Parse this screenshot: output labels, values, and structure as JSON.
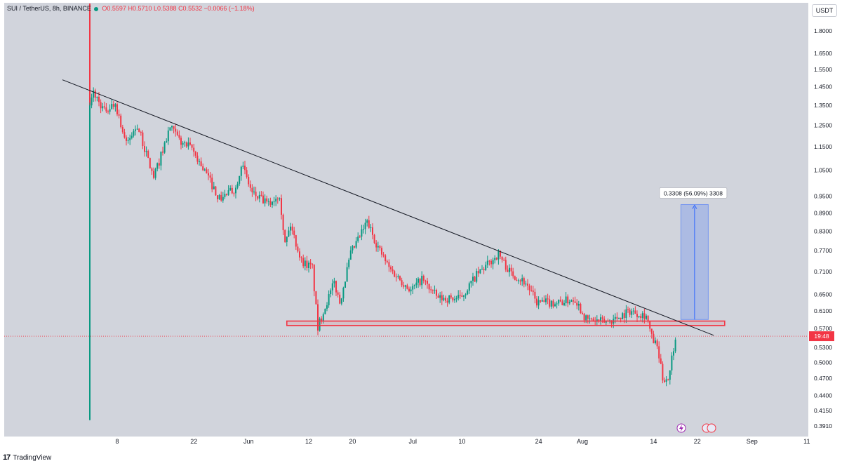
{
  "header": {
    "symbol": "SUI / TetherUS, 8h, BINANCE",
    "open": "O0.5597",
    "high": "H0.5710",
    "low": "L0.5388",
    "close": "C0.5532",
    "change": "−0.0066 (−1.18%)"
  },
  "currency_label": "USDT",
  "price_tag": "19:48",
  "measure_label": "0.3308 (56.09%) 3308",
  "footer": {
    "brand_mark": "17",
    "brand": "TradingView"
  },
  "colors": {
    "up": "#089981",
    "down": "#f23645",
    "plot_bg": "#d1d4dc",
    "trendline": "#131722",
    "support": "#f23645",
    "measure": "#2962ff"
  },
  "chart_data": {
    "type": "candlestick",
    "symbol": "SUI / TetherUS",
    "interval": "8h",
    "exchange": "BINANCE",
    "y_scale": "log",
    "ylim": [
      0.37,
      2.0
    ],
    "y_ticks": [
      "1.8000",
      "1.6500",
      "1.5500",
      "1.4500",
      "1.3500",
      "1.2500",
      "1.1500",
      "1.0500",
      "0.9500",
      "0.8900",
      "0.8300",
      "0.7700",
      "0.7100",
      "0.6500",
      "0.6100",
      "0.5700",
      "0.5300",
      "0.5000",
      "0.4700",
      "0.4400",
      "0.4150",
      "0.3910"
    ],
    "x_ticks": [
      "8",
      "22",
      "Jun",
      "12",
      "20",
      "Jul",
      "10",
      "24",
      "Aug",
      "14",
      "22",
      "Sep",
      "11"
    ],
    "anchors": [
      {
        "d": "2023-05-03",
        "v": 0.4
      },
      {
        "d": "2023-05-03",
        "v": 2.0
      },
      {
        "d": "2023-05-03",
        "v": 1.3
      },
      {
        "d": "2023-05-04",
        "v": 1.42
      },
      {
        "d": "2023-05-06",
        "v": 1.32
      },
      {
        "d": "2023-05-08",
        "v": 1.36
      },
      {
        "d": "2023-05-10",
        "v": 1.16
      },
      {
        "d": "2023-05-12",
        "v": 1.25
      },
      {
        "d": "2023-05-15",
        "v": 1.02
      },
      {
        "d": "2023-05-18",
        "v": 1.24
      },
      {
        "d": "2023-05-20",
        "v": 1.17
      },
      {
        "d": "2023-05-22",
        "v": 1.14
      },
      {
        "d": "2023-05-25",
        "v": 1.02
      },
      {
        "d": "2023-05-27",
        "v": 0.94
      },
      {
        "d": "2023-05-30",
        "v": 0.98
      },
      {
        "d": "2023-05-31",
        "v": 1.08
      },
      {
        "d": "2023-06-02",
        "v": 0.96
      },
      {
        "d": "2023-06-05",
        "v": 0.92
      },
      {
        "d": "2023-06-07",
        "v": 0.96
      },
      {
        "d": "2023-06-08",
        "v": 0.79
      },
      {
        "d": "2023-06-09",
        "v": 0.85
      },
      {
        "d": "2023-06-11",
        "v": 0.74
      },
      {
        "d": "2023-06-13",
        "v": 0.72
      },
      {
        "d": "2023-06-14",
        "v": 0.57
      },
      {
        "d": "2023-06-15",
        "v": 0.61
      },
      {
        "d": "2023-06-17",
        "v": 0.68
      },
      {
        "d": "2023-06-18",
        "v": 0.63
      },
      {
        "d": "2023-06-20",
        "v": 0.76
      },
      {
        "d": "2023-06-23",
        "v": 0.86
      },
      {
        "d": "2023-06-25",
        "v": 0.78
      },
      {
        "d": "2023-06-27",
        "v": 0.72
      },
      {
        "d": "2023-07-01",
        "v": 0.66
      },
      {
        "d": "2023-07-03",
        "v": 0.69
      },
      {
        "d": "2023-07-06",
        "v": 0.64
      },
      {
        "d": "2023-07-10",
        "v": 0.64
      },
      {
        "d": "2023-07-13",
        "v": 0.7
      },
      {
        "d": "2023-07-17",
        "v": 0.76
      },
      {
        "d": "2023-07-19",
        "v": 0.71
      },
      {
        "d": "2023-07-22",
        "v": 0.68
      },
      {
        "d": "2023-07-24",
        "v": 0.63
      },
      {
        "d": "2023-07-28",
        "v": 0.63
      },
      {
        "d": "2023-07-31",
        "v": 0.64
      },
      {
        "d": "2023-08-02",
        "v": 0.59
      },
      {
        "d": "2023-08-05",
        "v": 0.585
      },
      {
        "d": "2023-08-07",
        "v": 0.59
      },
      {
        "d": "2023-08-10",
        "v": 0.61
      },
      {
        "d": "2023-08-13",
        "v": 0.6
      },
      {
        "d": "2023-08-14",
        "v": 0.55
      },
      {
        "d": "2023-08-15",
        "v": 0.53
      },
      {
        "d": "2023-08-16",
        "v": 0.47
      },
      {
        "d": "2023-08-17",
        "v": 0.47
      },
      {
        "d": "2023-08-18",
        "v": 0.53
      },
      {
        "d": "2023-08-18",
        "v": 0.553
      }
    ],
    "trendline": [
      {
        "d": "2023-04-28",
        "v": 1.49
      },
      {
        "d": "2023-08-25",
        "v": 0.555
      }
    ],
    "support_zone": {
      "from": "2023-06-08",
      "to": "2023-08-27",
      "v_low": 0.5765,
      "v_high": 0.5865
    },
    "measure": {
      "from": "2023-08-19",
      "to": "2023-08-24",
      "v_from": 0.59,
      "v_to": 0.92,
      "change": "0.3308 (56.09%)"
    },
    "last_price": 0.5532
  }
}
